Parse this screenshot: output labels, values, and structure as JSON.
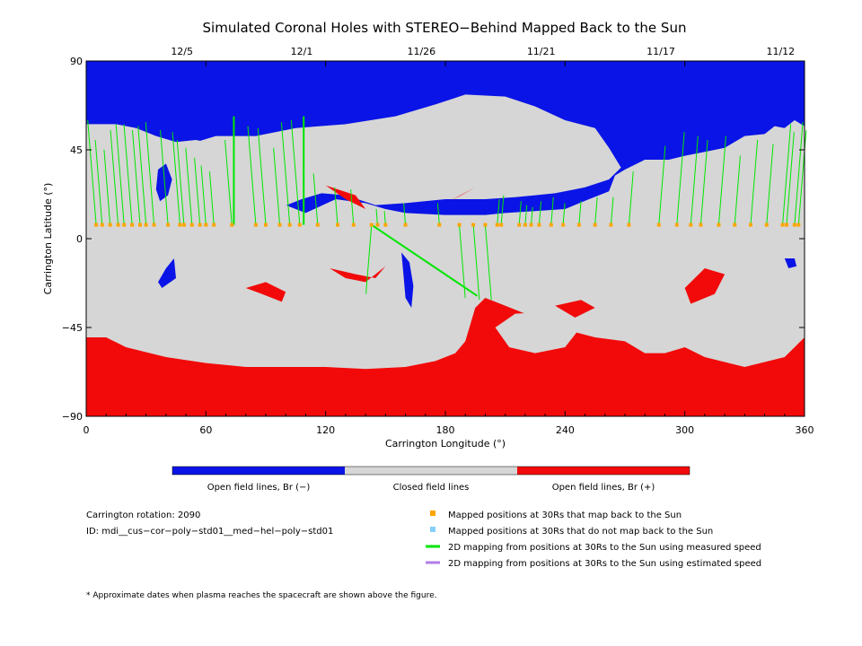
{
  "chart_data": {
    "type": "heatmap",
    "title": "Simulated Coronal Holes with STEREO−Behind Mapped Back to the Sun",
    "xlabel": "Carrington Longitude (°)",
    "ylabel": "Carrington Latitude (°)",
    "xlim": [
      0,
      360
    ],
    "ylim": [
      -90,
      90
    ],
    "x_ticks": [
      "0",
      "60",
      "120",
      "180",
      "240",
      "300",
      "360"
    ],
    "y_ticks": [
      "90",
      "45",
      "0",
      "−45",
      "−90"
    ],
    "top_axis": [
      {
        "label": "12/5",
        "lon": 30
      },
      {
        "label": "12/1",
        "lon": 90
      },
      {
        "label": "11/26",
        "lon": 150
      },
      {
        "label": "11/21",
        "lon": 210
      },
      {
        "label": "11/17",
        "lon": 270
      },
      {
        "label": "11/12",
        "lon": 330
      }
    ],
    "colorbar": [
      {
        "label": "Open field lines, Br (−)",
        "color": "#0a14e6"
      },
      {
        "label": "Closed field lines",
        "color": "#d6d6d6"
      },
      {
        "label": "Open field lines, Br (+)",
        "color": "#f20a0a"
      }
    ],
    "regions": [
      {
        "color": "#0a14e6",
        "points": [
          [
            0,
            90
          ],
          [
            360,
            90
          ],
          [
            360,
            57
          ],
          [
            355,
            60
          ],
          [
            350,
            56
          ],
          [
            345,
            57
          ],
          [
            340,
            53
          ],
          [
            330,
            52
          ],
          [
            320,
            46
          ],
          [
            310,
            44
          ],
          [
            300,
            42
          ],
          [
            292,
            40
          ],
          [
            280,
            40
          ],
          [
            270,
            35
          ],
          [
            265,
            32
          ],
          [
            262,
            24
          ],
          [
            252,
            20
          ],
          [
            240,
            15
          ],
          [
            225,
            14
          ],
          [
            210,
            13
          ],
          [
            200,
            12
          ],
          [
            180,
            12
          ],
          [
            160,
            13
          ],
          [
            150,
            15
          ],
          [
            140,
            18
          ],
          [
            125,
            20
          ],
          [
            110,
            13
          ],
          [
            95,
            19
          ],
          [
            90,
            27
          ],
          [
            85,
            33
          ],
          [
            80,
            40
          ],
          [
            70,
            47
          ],
          [
            55,
            50
          ],
          [
            45,
            49
          ],
          [
            35,
            52
          ],
          [
            25,
            56
          ],
          [
            15,
            58
          ],
          [
            0,
            58
          ]
        ]
      },
      {
        "color": "#d6d6d6",
        "points": [
          [
            52,
            48
          ],
          [
            65,
            52
          ],
          [
            85,
            52
          ],
          [
            105,
            56
          ],
          [
            130,
            58
          ],
          [
            155,
            62
          ],
          [
            175,
            68
          ],
          [
            190,
            73
          ],
          [
            210,
            72
          ],
          [
            225,
            67
          ],
          [
            240,
            60
          ],
          [
            255,
            56
          ],
          [
            262,
            46
          ],
          [
            268,
            36
          ],
          [
            262,
            30
          ],
          [
            250,
            26
          ],
          [
            235,
            23
          ],
          [
            225,
            22
          ],
          [
            215,
            21
          ],
          [
            200,
            20
          ],
          [
            180,
            20
          ],
          [
            160,
            18
          ],
          [
            145,
            17
          ],
          [
            130,
            22
          ],
          [
            118,
            23
          ],
          [
            108,
            20
          ],
          [
            98,
            16
          ],
          [
            92,
            20
          ],
          [
            88,
            28
          ],
          [
            82,
            33
          ],
          [
            75,
            38
          ],
          [
            65,
            43
          ]
        ]
      },
      {
        "color": "#0a14e6",
        "points": [
          [
            36,
            35
          ],
          [
            40,
            38
          ],
          [
            43,
            30
          ],
          [
            41,
            22
          ],
          [
            37,
            19
          ],
          [
            35,
            25
          ]
        ]
      },
      {
        "color": "#0a14e6",
        "points": [
          [
            158,
            -7
          ],
          [
            162,
            -12
          ],
          [
            164,
            -24
          ],
          [
            163,
            -35
          ],
          [
            160,
            -30
          ],
          [
            159,
            -18
          ]
        ]
      },
      {
        "color": "#0a14e6",
        "points": [
          [
            350,
            -10
          ],
          [
            355,
            -10
          ],
          [
            356,
            -14
          ],
          [
            352,
            -15
          ]
        ]
      },
      {
        "color": "#0a14e6",
        "points": [
          [
            40,
            -15
          ],
          [
            44,
            -10
          ],
          [
            45,
            -20
          ],
          [
            38,
            -25
          ],
          [
            36,
            -22
          ]
        ]
      },
      {
        "color": "#f20a0a",
        "points": [
          [
            0,
            -50
          ],
          [
            10,
            -50
          ],
          [
            20,
            -55
          ],
          [
            40,
            -60
          ],
          [
            60,
            -63
          ],
          [
            80,
            -65
          ],
          [
            100,
            -65
          ],
          [
            120,
            -65
          ],
          [
            140,
            -66
          ],
          [
            160,
            -65
          ],
          [
            175,
            -62
          ],
          [
            185,
            -58
          ],
          [
            190,
            -52
          ],
          [
            195,
            -35
          ],
          [
            200,
            -30
          ],
          [
            210,
            -34
          ],
          [
            220,
            -38
          ],
          [
            240,
            -46
          ],
          [
            255,
            -50
          ],
          [
            270,
            -52
          ],
          [
            280,
            -58
          ],
          [
            290,
            -58
          ],
          [
            300,
            -55
          ],
          [
            310,
            -60
          ],
          [
            330,
            -65
          ],
          [
            350,
            -60
          ],
          [
            360,
            -50
          ],
          [
            360,
            -90
          ],
          [
            0,
            -90
          ]
        ]
      },
      {
        "color": "#d6d6d6",
        "points": [
          [
            205,
            -45
          ],
          [
            215,
            -38
          ],
          [
            235,
            -37
          ],
          [
            250,
            -42
          ],
          [
            240,
            -55
          ],
          [
            225,
            -58
          ],
          [
            212,
            -55
          ]
        ]
      },
      {
        "color": "#f20a0a",
        "points": [
          [
            300,
            -25
          ],
          [
            303,
            -33
          ],
          [
            315,
            -28
          ],
          [
            320,
            -18
          ],
          [
            310,
            -15
          ]
        ]
      },
      {
        "color": "#f20a0a",
        "points": [
          [
            120,
            27
          ],
          [
            135,
            22
          ],
          [
            140,
            15
          ],
          [
            130,
            20
          ]
        ]
      },
      {
        "color": "#f20a0a",
        "points": [
          [
            182,
            19
          ],
          [
            195,
            26
          ],
          [
            188,
            22
          ]
        ]
      },
      {
        "color": "#f20a0a",
        "points": [
          [
            80,
            -25
          ],
          [
            90,
            -22
          ],
          [
            100,
            -27
          ],
          [
            98,
            -32
          ],
          [
            88,
            -28
          ]
        ]
      },
      {
        "color": "#f20a0a",
        "points": [
          [
            122,
            -15
          ],
          [
            135,
            -18
          ],
          [
            145,
            -20
          ],
          [
            150,
            -14
          ],
          [
            140,
            -22
          ],
          [
            130,
            -20
          ]
        ]
      },
      {
        "color": "#f20a0a",
        "points": [
          [
            235,
            -34
          ],
          [
            248,
            -31
          ],
          [
            255,
            -35
          ],
          [
            245,
            -40
          ]
        ]
      }
    ],
    "mapped_color": "#ffa500",
    "mapped_positions_lon": [
      5,
      8,
      12,
      16,
      19,
      23,
      27,
      30,
      34,
      41,
      47,
      49,
      53,
      57,
      60,
      64,
      73,
      85,
      90,
      97,
      102,
      107,
      116,
      126,
      134,
      143,
      146,
      150,
      160,
      177,
      187,
      194,
      200,
      206,
      208,
      217,
      220,
      223,
      227,
      233,
      239,
      247,
      255,
      263,
      272,
      287,
      296,
      303,
      308,
      317,
      325,
      333,
      341,
      349,
      351,
      355,
      357
    ],
    "mapped_lat": 7,
    "green_lines": [
      [
        5,
        60
      ],
      [
        8,
        50
      ],
      [
        12,
        45
      ],
      [
        16,
        55
      ],
      [
        19,
        58
      ],
      [
        23,
        58
      ],
      [
        27,
        55
      ],
      [
        30,
        57
      ],
      [
        34,
        59
      ],
      [
        41,
        55
      ],
      [
        47,
        54
      ],
      [
        49,
        50
      ],
      [
        53,
        46
      ],
      [
        57,
        41
      ],
      [
        60,
        37
      ],
      [
        64,
        34
      ],
      [
        73,
        50
      ],
      [
        85,
        57
      ],
      [
        90,
        56
      ],
      [
        97,
        46
      ],
      [
        102,
        59
      ],
      [
        107,
        60
      ],
      [
        116,
        33
      ],
      [
        126,
        26
      ],
      [
        134,
        25
      ],
      [
        143,
        -28
      ],
      [
        146,
        15
      ],
      [
        150,
        14
      ],
      [
        160,
        18
      ],
      [
        177,
        18
      ],
      [
        187,
        -30
      ],
      [
        194,
        -31
      ],
      [
        200,
        -31
      ],
      [
        206,
        20
      ],
      [
        208,
        22
      ],
      [
        217,
        19
      ],
      [
        220,
        17
      ],
      [
        223,
        16
      ],
      [
        227,
        19
      ],
      [
        233,
        21
      ],
      [
        239,
        18
      ],
      [
        247,
        19
      ],
      [
        255,
        21
      ],
      [
        263,
        21
      ],
      [
        272,
        34
      ],
      [
        287,
        47
      ],
      [
        296,
        54
      ],
      [
        303,
        52
      ],
      [
        308,
        50
      ],
      [
        317,
        52
      ],
      [
        325,
        42
      ],
      [
        333,
        50
      ],
      [
        341,
        48
      ],
      [
        349,
        58
      ],
      [
        351,
        54
      ],
      [
        355,
        59
      ],
      [
        357,
        55
      ]
    ],
    "vertical_bars_lon": [
      74,
      109
    ]
  },
  "info": {
    "rotation": "Carrington rotation: 2090",
    "id": "ID: mdi__cus−cor−poly−std01__med−hel−poly−std01",
    "footnote": "* Approximate dates when plasma reaches the spacecraft are shown above the figure."
  },
  "legend": [
    {
      "label": "Mapped positions at 30Rs that map back to the Sun",
      "color": "#ffa500",
      "kind": "square"
    },
    {
      "label": "Mapped positions at 30Rs that do not map back to the Sun",
      "color": "#87cefa",
      "kind": "square"
    },
    {
      "label": "2D mapping from positions at 30Rs to the Sun using measured speed",
      "color": "#00e600",
      "kind": "line"
    },
    {
      "label": "2D mapping from positions at 30Rs to the Sun using estimated speed",
      "color": "#b07ce6",
      "kind": "line"
    }
  ]
}
